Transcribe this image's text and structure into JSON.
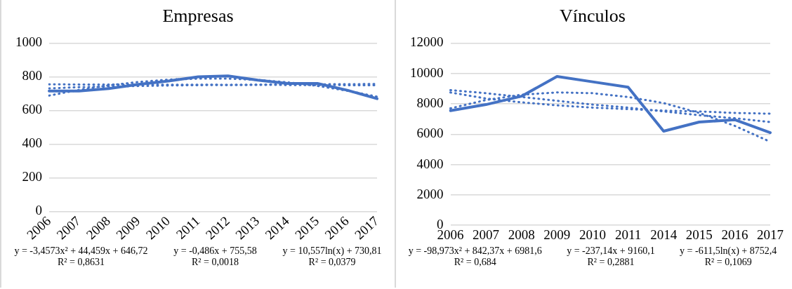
{
  "chart_data": [
    {
      "type": "line",
      "title": "Empresas",
      "categories": [
        "2006",
        "2007",
        "2008",
        "2009",
        "2010",
        "2011",
        "2012",
        "2013",
        "2014",
        "2015",
        "2016",
        "2017"
      ],
      "ylim": [
        0,
        1000
      ],
      "yticks": [
        0,
        200,
        400,
        600,
        800,
        1000
      ],
      "grid": "y",
      "legend": false,
      "marker": "none",
      "series": [
        {
          "color": "#4472c4",
          "line_style": "solid",
          "values": [
            715,
            715,
            730,
            755,
            775,
            800,
            805,
            780,
            760,
            760,
            720,
            670
          ]
        },
        {
          "color": "#4472c4",
          "line_style": "dotted",
          "values": [
            688,
            722,
            749,
            769,
            783,
            789,
            789,
            781,
            767,
            746,
            717,
            682
          ]
        },
        {
          "color": "#4472c4",
          "line_style": "dotted",
          "values": [
            755,
            754,
            754,
            754,
            753,
            753,
            752,
            752,
            751,
            751,
            750,
            750
          ]
        },
        {
          "color": "#4472c4",
          "line_style": "dotted",
          "values": [
            731,
            738,
            742,
            745,
            748,
            750,
            751,
            753,
            754,
            755,
            756,
            757
          ]
        }
      ],
      "annotations": [
        "y = -3,4573x² + 44,459x + 646,72\nR² = 0,8631",
        "y = -0,486x + 755,58\nR² = 0,0018",
        "y = 10,557ln(x) + 730,81\nR² = 0,0379"
      ]
    },
    {
      "type": "line",
      "title": "Vínculos",
      "categories": [
        "2006",
        "2007",
        "2008",
        "2009",
        "2010",
        "2011",
        "2014",
        "2015",
        "2016",
        "2017"
      ],
      "ylim": [
        0,
        12000
      ],
      "yticks": [
        0,
        2000,
        4000,
        6000,
        8000,
        10000,
        12000
      ],
      "grid": "y",
      "legend": false,
      "marker": "none",
      "series": [
        {
          "color": "#4472c4",
          "line_style": "solid",
          "values": [
            7550,
            7950,
            8500,
            9800,
            9450,
            9100,
            6200,
            6800,
            6950,
            6100
          ]
        },
        {
          "color": "#4472c4",
          "line_style": "dotted",
          "values": [
            7700,
            8250,
            8600,
            8750,
            8700,
            8450,
            8050,
            7400,
            6550,
            5500
          ]
        },
        {
          "color": "#4472c4",
          "line_style": "dotted",
          "values": [
            8900,
            8700,
            8450,
            8200,
            7950,
            7750,
            7500,
            7250,
            7050,
            6800
          ]
        },
        {
          "color": "#4472c4",
          "line_style": "dotted",
          "values": [
            8750,
            8350,
            8100,
            7900,
            7750,
            7650,
            7550,
            7500,
            7400,
            7350
          ]
        }
      ],
      "annotations": [
        "y = -98,973x² + 842,37x + 6981,6\nR² = 0,684",
        "y = -237,14x + 9160,1\nR² = 0,2881",
        "y = -611,5ln(x) + 8752,4\nR² = 0,1069"
      ]
    }
  ]
}
